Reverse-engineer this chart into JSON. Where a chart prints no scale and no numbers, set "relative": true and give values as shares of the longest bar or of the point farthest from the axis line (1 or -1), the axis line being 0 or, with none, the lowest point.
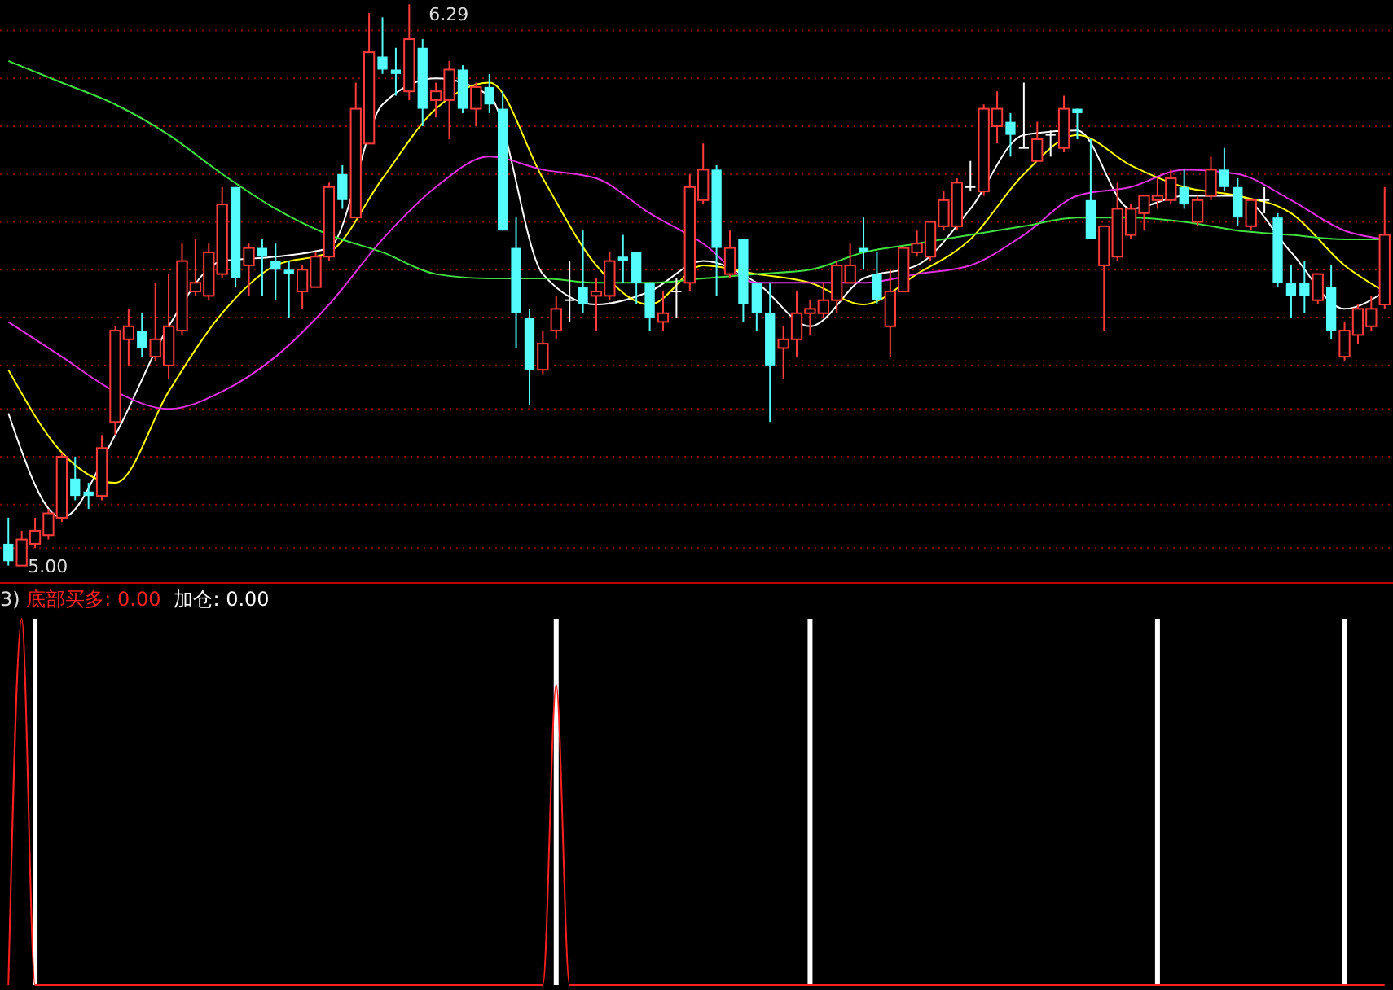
{
  "chart_data": [
    {
      "type": "candlestick",
      "categories": [
        null,
        null,
        null,
        null,
        null,
        null,
        null,
        null,
        null,
        null,
        null,
        null,
        null,
        null,
        null,
        null,
        null,
        null,
        null,
        null,
        null,
        null,
        null,
        null,
        null,
        null,
        null,
        null,
        null,
        null,
        null,
        null,
        null,
        null,
        null,
        null,
        null,
        null,
        null,
        null,
        null,
        null,
        null,
        null,
        null,
        null,
        null,
        null,
        null,
        null,
        null,
        null,
        null,
        null,
        null,
        null,
        null,
        null,
        null,
        null,
        null,
        null,
        null,
        null,
        null,
        null,
        null,
        null,
        null,
        null,
        null,
        null,
        null,
        null,
        null,
        null,
        null,
        null,
        null,
        null,
        null,
        null,
        null,
        null,
        null,
        null,
        null,
        null,
        null,
        null,
        null,
        null,
        null,
        null,
        null,
        null,
        null,
        null,
        null,
        null,
        null,
        null,
        null,
        null
      ],
      "ohlc": [
        [
          5.05,
          5.11,
          5.0,
          5.01
        ],
        [
          5.0,
          5.08,
          5.0,
          5.06
        ],
        [
          5.05,
          5.11,
          5.04,
          5.08
        ],
        [
          5.07,
          5.13,
          5.06,
          5.12
        ],
        [
          5.11,
          5.26,
          5.1,
          5.25
        ],
        [
          5.2,
          5.25,
          5.15,
          5.16
        ],
        [
          5.17,
          5.19,
          5.13,
          5.16
        ],
        [
          5.16,
          5.3,
          5.15,
          5.27
        ],
        [
          5.33,
          5.55,
          5.3,
          5.54
        ],
        [
          5.52,
          5.59,
          5.46,
          5.55
        ],
        [
          5.54,
          5.58,
          5.48,
          5.5
        ],
        [
          5.48,
          5.65,
          5.47,
          5.52
        ],
        [
          5.46,
          5.67,
          5.43,
          5.55
        ],
        [
          5.54,
          5.74,
          5.53,
          5.7
        ],
        [
          5.63,
          5.75,
          5.62,
          5.65
        ],
        [
          5.62,
          5.74,
          5.61,
          5.72
        ],
        [
          5.67,
          5.87,
          5.66,
          5.83
        ],
        [
          5.87,
          5.87,
          5.64,
          5.66
        ],
        [
          5.69,
          5.74,
          5.62,
          5.73
        ],
        [
          5.73,
          5.75,
          5.62,
          5.71
        ],
        [
          5.7,
          5.74,
          5.61,
          5.68
        ],
        [
          5.68,
          5.7,
          5.57,
          5.67
        ],
        [
          5.63,
          5.69,
          5.59,
          5.68
        ],
        [
          5.64,
          5.72,
          5.64,
          5.71
        ],
        [
          5.71,
          5.88,
          5.7,
          5.87
        ],
        [
          5.9,
          5.92,
          5.82,
          5.84
        ],
        [
          5.8,
          6.11,
          5.8,
          6.05
        ],
        [
          5.97,
          6.27,
          5.97,
          6.18
        ],
        [
          6.17,
          6.26,
          6.13,
          6.14
        ],
        [
          6.14,
          6.19,
          6.08,
          6.13
        ],
        [
          6.09,
          6.29,
          6.07,
          6.21
        ],
        [
          6.19,
          6.21,
          6.01,
          6.05
        ],
        [
          6.07,
          6.11,
          6.03,
          6.09
        ],
        [
          6.07,
          6.16,
          5.98,
          6.14
        ],
        [
          6.14,
          6.15,
          6.04,
          6.05
        ],
        [
          6.05,
          6.11,
          6.01,
          6.1
        ],
        [
          6.1,
          6.13,
          6.04,
          6.06
        ],
        [
          6.05,
          6.09,
          5.77,
          5.77
        ],
        [
          5.73,
          5.8,
          5.5,
          5.58
        ],
        [
          5.57,
          5.59,
          5.37,
          5.45
        ],
        [
          5.45,
          5.54,
          5.44,
          5.51
        ],
        [
          5.54,
          5.62,
          5.52,
          5.59
        ],
        [
          5.61,
          5.7,
          5.56,
          5.61
        ],
        [
          5.64,
          5.77,
          5.58,
          5.6
        ],
        [
          5.62,
          5.66,
          5.54,
          5.63
        ],
        [
          5.62,
          5.72,
          5.61,
          5.7
        ],
        [
          5.71,
          5.76,
          5.65,
          5.7
        ],
        [
          5.72,
          5.72,
          5.6,
          5.65
        ],
        [
          5.65,
          5.65,
          5.54,
          5.57
        ],
        [
          5.56,
          5.63,
          5.54,
          5.58
        ],
        [
          5.63,
          5.66,
          5.57,
          5.63
        ],
        [
          5.65,
          5.9,
          5.63,
          5.87
        ],
        [
          5.84,
          5.97,
          5.83,
          5.91
        ],
        [
          5.91,
          5.92,
          5.62,
          5.73
        ],
        [
          5.67,
          5.77,
          5.66,
          5.73
        ],
        [
          5.75,
          5.75,
          5.56,
          5.6
        ],
        [
          5.65,
          5.65,
          5.54,
          5.58
        ],
        [
          5.58,
          5.65,
          5.33,
          5.46
        ],
        [
          5.5,
          5.55,
          5.43,
          5.52
        ],
        [
          5.52,
          5.63,
          5.48,
          5.58
        ],
        [
          5.58,
          5.61,
          5.53,
          5.59
        ],
        [
          5.58,
          5.65,
          5.57,
          5.61
        ],
        [
          5.61,
          5.7,
          5.58,
          5.69
        ],
        [
          5.65,
          5.74,
          5.65,
          5.69
        ],
        [
          5.73,
          5.8,
          5.68,
          5.72
        ],
        [
          5.67,
          5.72,
          5.6,
          5.61
        ],
        [
          5.55,
          5.68,
          5.48,
          5.63
        ],
        [
          5.63,
          5.73,
          5.63,
          5.73
        ],
        [
          5.72,
          5.77,
          5.71,
          5.74
        ],
        [
          5.71,
          5.79,
          5.7,
          5.79
        ],
        [
          5.78,
          5.86,
          5.77,
          5.84
        ],
        [
          5.78,
          5.89,
          5.77,
          5.88
        ],
        [
          5.87,
          5.93,
          5.86,
          5.87
        ],
        [
          5.86,
          6.06,
          5.85,
          6.05
        ],
        [
          6.01,
          6.09,
          5.97,
          6.05
        ],
        [
          6.02,
          6.04,
          5.94,
          5.99
        ],
        [
          5.96,
          6.11,
          5.96,
          5.96
        ],
        [
          5.93,
          6.02,
          5.93,
          5.98
        ],
        [
          5.99,
          6.0,
          5.94,
          5.99
        ],
        [
          5.96,
          6.08,
          5.95,
          6.05
        ],
        [
          6.05,
          6.05,
          5.98,
          6.04
        ],
        [
          5.84,
          5.98,
          5.75,
          5.75
        ],
        [
          5.69,
          5.78,
          5.54,
          5.78
        ],
        [
          5.71,
          5.88,
          5.7,
          5.82
        ],
        [
          5.76,
          5.83,
          5.75,
          5.82
        ],
        [
          5.81,
          5.85,
          5.77,
          5.85
        ],
        [
          5.84,
          5.89,
          5.82,
          5.85
        ],
        [
          5.84,
          5.91,
          5.83,
          5.89
        ],
        [
          5.87,
          5.91,
          5.82,
          5.83
        ],
        [
          5.79,
          5.85,
          5.78,
          5.84
        ],
        [
          5.85,
          5.94,
          5.84,
          5.91
        ],
        [
          5.91,
          5.96,
          5.86,
          5.87
        ],
        [
          5.87,
          5.89,
          5.78,
          5.8
        ],
        [
          5.78,
          5.84,
          5.77,
          5.84
        ],
        [
          5.84,
          5.87,
          5.81,
          5.84
        ],
        [
          5.8,
          5.81,
          5.64,
          5.65
        ],
        [
          5.65,
          5.69,
          5.57,
          5.62
        ],
        [
          5.65,
          5.7,
          5.58,
          5.62
        ],
        [
          5.61,
          5.67,
          5.6,
          5.67
        ],
        [
          5.64,
          5.69,
          5.52,
          5.54
        ],
        [
          5.48,
          5.56,
          5.47,
          5.54
        ],
        [
          5.53,
          5.6,
          5.51,
          5.59
        ],
        [
          5.55,
          5.62,
          5.54,
          5.59
        ],
        [
          5.6,
          5.87,
          5.59,
          5.76
        ]
      ],
      "colors": [
        "#54fcfc",
        "#ff3c3c",
        "#ff3c3c",
        "#ff3c3c",
        "#ff3c3c",
        "#54fcfc",
        "#54fcfc",
        "#ff3c3c",
        "#ff3c3c",
        "#ff3c3c",
        "#54fcfc",
        "#ff3c3c",
        "#ff3c3c",
        "#ff3c3c",
        "#ff3c3c",
        "#ff3c3c",
        "#ff3c3c",
        "#54fcfc",
        "#ff3c3c",
        "#54fcfc",
        "#54fcfc",
        "#54fcfc",
        "#ff3c3c",
        "#ff3c3c",
        "#ff3c3c",
        "#54fcfc",
        "#ff3c3c",
        "#ff3c3c",
        "#54fcfc",
        "#54fcfc",
        "#ff3c3c",
        "#54fcfc",
        "#ff3c3c",
        "#ff3c3c",
        "#54fcfc",
        "#ff3c3c",
        "#54fcfc",
        "#54fcfc",
        "#54fcfc",
        "#54fcfc",
        "#ff3c3c",
        "#ff3c3c",
        "#ffffff",
        "#54fcfc",
        "#ff3c3c",
        "#ff3c3c",
        "#54fcfc",
        "#54fcfc",
        "#54fcfc",
        "#ff3c3c",
        "#ffffff",
        "#ff3c3c",
        "#ff3c3c",
        "#54fcfc",
        "#ff3c3c",
        "#54fcfc",
        "#54fcfc",
        "#54fcfc",
        "#ff3c3c",
        "#ff3c3c",
        "#ff3c3c",
        "#ff3c3c",
        "#ff3c3c",
        "#ff3c3c",
        "#54fcfc",
        "#54fcfc",
        "#ff3c3c",
        "#ff3c3c",
        "#ff3c3c",
        "#ff3c3c",
        "#ff3c3c",
        "#ff3c3c",
        "#ffffff",
        "#ff3c3c",
        "#ff3c3c",
        "#54fcfc",
        "#ffffff",
        "#ff3c3c",
        "#ffffff",
        "#ff3c3c",
        "#54fcfc",
        "#54fcfc",
        "#ff3c3c",
        "#ff3c3c",
        "#ff3c3c",
        "#ff3c3c",
        "#ff3c3c",
        "#ff3c3c",
        "#54fcfc",
        "#ff3c3c",
        "#ff3c3c",
        "#54fcfc",
        "#54fcfc",
        "#ff3c3c",
        "#ffffff",
        "#54fcfc",
        "#54fcfc",
        "#54fcfc",
        "#ff3c3c",
        "#54fcfc",
        "#ff3c3c",
        "#ff3c3c",
        "#ff3c3c",
        "#ff3c3c"
      ],
      "ylim": [
        4.96,
        6.3
      ],
      "yticks": [
        {
          "value": 6.23,
          "label": null
        },
        {
          "value": 6.12,
          "label": null
        },
        {
          "value": 6.01,
          "label": null
        },
        {
          "value": 5.9,
          "label": null
        },
        {
          "value": 5.79,
          "label": null
        },
        {
          "value": 5.68,
          "label": null
        },
        {
          "value": 5.57,
          "label": null
        },
        {
          "value": 5.46,
          "label": null
        },
        {
          "value": 5.36,
          "label": null
        },
        {
          "value": 5.25,
          "label": null
        },
        {
          "value": 5.14,
          "label": null
        },
        {
          "value": 5.04,
          "label": null
        }
      ],
      "grid": "y",
      "annotations": [
        "6.29",
        "5.00"
      ],
      "series": [
        {
          "type": "line",
          "color": "#ffffff",
          "values": [
            5.35,
            null,
            null,
            null,
            5.11,
            null,
            null,
            null,
            5.3,
            null,
            null,
            null,
            5.55,
            null,
            null,
            null,
            5.7,
            null,
            null,
            null,
            5.71,
            null,
            null,
            null,
            5.73,
            null,
            null,
            null,
            6.06,
            null,
            null,
            null,
            6.12,
            null,
            null,
            null,
            6.08,
            null,
            null,
            null,
            5.67,
            null,
            null,
            null,
            5.6,
            null,
            null,
            null,
            5.63,
            null,
            null,
            null,
            5.7,
            null,
            null,
            null,
            5.65,
            null,
            null,
            null,
            5.55,
            null,
            null,
            null,
            5.66,
            null,
            null,
            null,
            5.69,
            null,
            null,
            null,
            5.82,
            null,
            null,
            null,
            5.99,
            null,
            null,
            null,
            6.0,
            null,
            null,
            null,
            5.82,
            null,
            null,
            null,
            5.85,
            null,
            null,
            null,
            5.85,
            null,
            null,
            null,
            5.72,
            null,
            null,
            null,
            5.59,
            null,
            null,
            5.63
          ]
        },
        {
          "type": "line",
          "color": "#ffff00",
          "values": [
            5.45,
            null,
            null,
            null,
            5.26,
            null,
            null,
            null,
            5.19,
            null,
            null,
            null,
            5.4,
            null,
            null,
            null,
            5.58,
            null,
            null,
            null,
            5.69,
            null,
            null,
            null,
            5.72,
            null,
            null,
            null,
            5.89,
            null,
            null,
            null,
            6.05,
            null,
            null,
            null,
            6.11,
            null,
            null,
            null,
            5.89,
            null,
            null,
            null,
            5.69,
            null,
            null,
            null,
            5.6,
            null,
            null,
            null,
            5.69,
            null,
            null,
            null,
            5.67,
            null,
            null,
            null,
            5.65,
            null,
            null,
            null,
            5.6,
            null,
            null,
            null,
            5.67,
            null,
            null,
            null,
            5.75,
            null,
            null,
            null,
            5.9,
            null,
            null,
            null,
            5.99,
            null,
            null,
            null,
            5.92,
            null,
            null,
            null,
            5.87,
            null,
            null,
            null,
            5.85,
            null,
            null,
            null,
            5.81,
            null,
            null,
            null,
            5.69,
            null,
            null,
            5.63
          ]
        },
        {
          "type": "line",
          "color": "#e030e0",
          "values": [
            5.56,
            null,
            null,
            null,
            5.48,
            null,
            null,
            null,
            5.4,
            null,
            null,
            null,
            5.36,
            null,
            null,
            null,
            5.4,
            null,
            null,
            null,
            5.48,
            null,
            null,
            null,
            5.6,
            null,
            null,
            null,
            5.75,
            null,
            null,
            null,
            5.87,
            null,
            null,
            null,
            5.94,
            null,
            null,
            null,
            5.91,
            null,
            null,
            null,
            5.89,
            null,
            null,
            null,
            5.81,
            null,
            null,
            null,
            5.74,
            null,
            null,
            null,
            5.65,
            null,
            null,
            null,
            5.65,
            null,
            null,
            null,
            5.65,
            null,
            null,
            null,
            5.67,
            null,
            null,
            null,
            5.69,
            null,
            null,
            null,
            5.76,
            null,
            null,
            null,
            5.85,
            null,
            null,
            null,
            5.87,
            null,
            null,
            null,
            5.91,
            null,
            null,
            null,
            5.9,
            null,
            null,
            null,
            5.84,
            null,
            null,
            null,
            5.77,
            null,
            null,
            5.75
          ]
        },
        {
          "type": "line",
          "color": "#40e040",
          "values": [
            6.16,
            null,
            null,
            null,
            6.11,
            null,
            null,
            null,
            6.06,
            null,
            null,
            null,
            5.99,
            null,
            null,
            null,
            5.9,
            null,
            null,
            null,
            5.82,
            null,
            null,
            null,
            5.76,
            null,
            null,
            null,
            5.72,
            null,
            null,
            null,
            5.67,
            null,
            null,
            null,
            5.66,
            null,
            null,
            null,
            5.66,
            null,
            null,
            null,
            5.65,
            null,
            null,
            null,
            5.65,
            null,
            null,
            null,
            5.66,
            null,
            null,
            null,
            5.67,
            null,
            null,
            null,
            5.68,
            null,
            null,
            null,
            5.72,
            null,
            null,
            null,
            5.74,
            null,
            null,
            null,
            5.76,
            null,
            null,
            null,
            5.78,
            null,
            null,
            null,
            5.8,
            null,
            null,
            null,
            5.8,
            null,
            null,
            null,
            5.79,
            null,
            null,
            null,
            5.77,
            null,
            null,
            null,
            5.76,
            null,
            null,
            null,
            5.75,
            null,
            null,
            5.75
          ]
        }
      ]
    },
    {
      "type": "line",
      "relative": true,
      "annotations": [
        "3)"
      ],
      "categories": [
        null,
        null,
        null,
        null,
        null,
        null,
        null,
        null,
        null,
        null,
        null,
        null,
        null,
        null,
        null,
        null,
        null,
        null,
        null,
        null,
        null,
        null,
        null,
        null,
        null,
        null,
        null,
        null,
        null,
        null,
        null,
        null,
        null,
        null,
        null,
        null,
        null,
        null,
        null,
        null,
        null,
        null,
        null,
        null,
        null,
        null,
        null,
        null,
        null,
        null,
        null,
        null,
        null,
        null,
        null,
        null,
        null,
        null,
        null,
        null,
        null,
        null,
        null,
        null,
        null,
        null,
        null,
        null,
        null,
        null,
        null,
        null,
        null,
        null,
        null,
        null,
        null,
        null,
        null,
        null,
        null,
        null,
        null,
        null,
        null,
        null,
        null,
        null,
        null,
        null,
        null,
        null,
        null,
        null,
        null,
        null,
        null,
        null,
        null,
        null,
        null,
        null,
        null,
        null
      ],
      "series": [
        {
          "name": "底部买多: 0.00",
          "color": "#ff2020",
          "values": [
            0,
            1,
            0,
            0,
            0,
            0,
            0,
            0,
            0,
            0,
            0,
            0,
            0,
            0,
            0,
            0,
            0,
            0,
            0,
            0,
            0,
            0,
            0,
            0,
            0,
            0,
            0,
            0,
            0,
            0,
            0,
            0,
            0,
            0,
            0,
            0,
            0,
            0,
            0,
            0,
            0,
            0.82,
            0,
            0,
            0,
            0,
            0,
            0,
            0,
            0,
            0,
            0,
            0,
            0,
            0,
            0,
            0,
            0,
            0,
            0,
            0,
            0,
            0,
            0,
            0,
            0,
            0,
            0,
            0,
            0,
            0,
            0,
            0,
            0,
            0,
            0,
            0,
            0,
            0,
            0,
            0,
            0,
            0,
            0,
            0,
            0,
            0,
            0,
            0,
            0,
            0,
            0,
            0,
            0,
            0,
            0,
            0,
            0,
            0,
            0,
            0,
            0,
            0,
            0
          ]
        },
        {
          "name": "加仓: 0.00",
          "type": "bar",
          "color": "#ffffff",
          "values": [
            0,
            0,
            1,
            0,
            0,
            0,
            0,
            0,
            0,
            0,
            0,
            0,
            0,
            0,
            0,
            0,
            0,
            0,
            0,
            0,
            0,
            0,
            0,
            0,
            0,
            0,
            0,
            0,
            0,
            0,
            0,
            0,
            0,
            0,
            0,
            0,
            0,
            0,
            0,
            0,
            0,
            1,
            0,
            0,
            0,
            0,
            0,
            0,
            0,
            0,
            0,
            0,
            0,
            0,
            0,
            0,
            0,
            0,
            0,
            0,
            1,
            0,
            0,
            0,
            0,
            0,
            0,
            0,
            0,
            0,
            0,
            0,
            0,
            0,
            0,
            0,
            0,
            0,
            0,
            0,
            0,
            0,
            0,
            0,
            0,
            0,
            1,
            0,
            0,
            0,
            0,
            0,
            0,
            0,
            0,
            0,
            0,
            0,
            0,
            0,
            1,
            0,
            0,
            0
          ]
        }
      ]
    }
  ]
}
